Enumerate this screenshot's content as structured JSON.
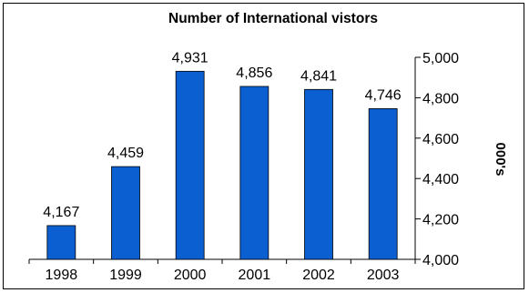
{
  "chart_data": {
    "type": "bar",
    "title": "Number of International vistors",
    "categories": [
      "1998",
      "1999",
      "2000",
      "2001",
      "2002",
      "2003"
    ],
    "values": [
      4167,
      4459,
      4931,
      4856,
      4841,
      4746
    ],
    "value_labels": [
      "4,167",
      "4,459",
      "4,931",
      "4,856",
      "4,841",
      "4,746"
    ],
    "xlabel": "",
    "ylabel": "000's",
    "ylim": [
      4000,
      5000
    ],
    "yticks": [
      4000,
      4200,
      4400,
      4600,
      4800,
      5000
    ],
    "ytick_labels": [
      "4,000",
      "4,200",
      "4,400",
      "4,600",
      "4,800",
      "5,000"
    ],
    "y_axis_side": "right",
    "grid": false,
    "legend": "none",
    "bar_color": "#0b5fd0"
  }
}
